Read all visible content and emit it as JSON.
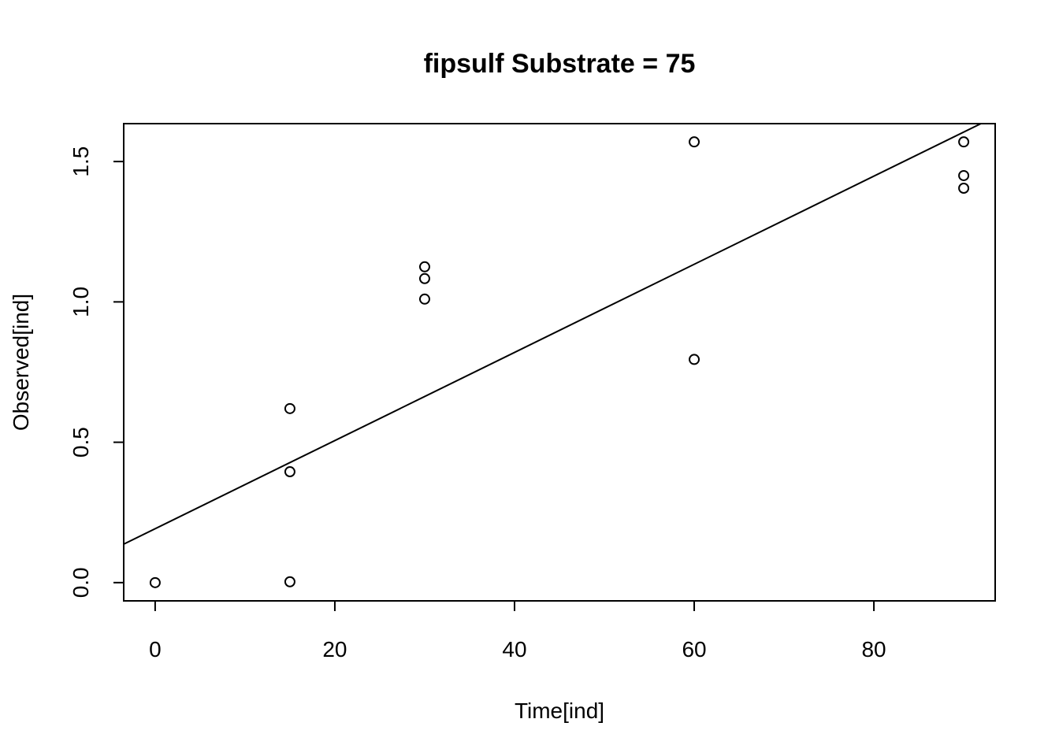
{
  "chart_data": {
    "type": "scatter",
    "title": "fipsulf Substrate = 75",
    "xlabel": "Time[ind]",
    "ylabel": "Observed[ind]",
    "xlim": [
      -3.5,
      93.5
    ],
    "ylim": [
      -0.065,
      1.635
    ],
    "x_ticks": [
      0,
      20,
      40,
      60,
      80
    ],
    "x_tick_labels": [
      "0",
      "20",
      "40",
      "60",
      "80"
    ],
    "y_ticks": [
      0.0,
      0.5,
      1.0,
      1.5
    ],
    "y_tick_labels": [
      "0.0",
      "0.5",
      "1.0",
      "1.5"
    ],
    "grid": false,
    "legend": "none",
    "marker": "open-circle",
    "points": [
      {
        "x": 0,
        "y": 0.0
      },
      {
        "x": 15,
        "y": 0.62
      },
      {
        "x": 15,
        "y": 0.395
      },
      {
        "x": 15,
        "y": 0.003
      },
      {
        "x": 30,
        "y": 1.125
      },
      {
        "x": 30,
        "y": 1.083
      },
      {
        "x": 30,
        "y": 1.01
      },
      {
        "x": 60,
        "y": 1.57
      },
      {
        "x": 60,
        "y": 0.795
      },
      {
        "x": 90,
        "y": 1.57
      },
      {
        "x": 90,
        "y": 1.45
      },
      {
        "x": 90,
        "y": 1.405
      }
    ],
    "fit_line": {
      "intercept": 0.192,
      "slope": 0.0157
    }
  }
}
